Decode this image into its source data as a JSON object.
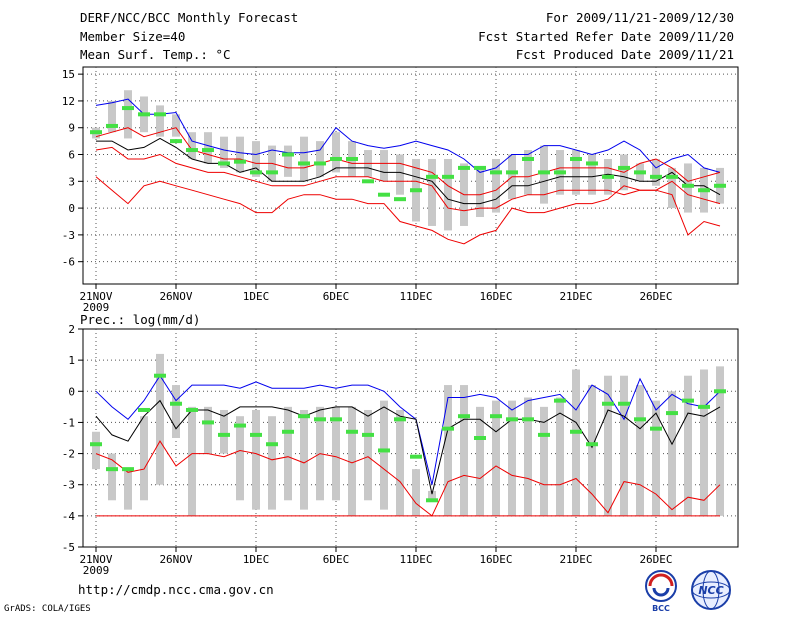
{
  "header": {
    "title": "DERF/NCC/BCC Monthly Forecast",
    "member_size": "Member Size=40",
    "panel1_var": "Mean Surf. Temp.: °C",
    "forecast_period": "For 2009/11/21-2009/12/30",
    "start_date": "Fcst Started Refer Date 2009/11/20",
    "produced_date": "Fcst Produced Date 2009/11/21"
  },
  "footer": {
    "url": "http://cmdp.ncc.cma.gov.cn",
    "credit": "GrADS: COLA/IGES",
    "logos": [
      "BCC",
      "NCC"
    ]
  },
  "colors": {
    "max_line": "#0000ee",
    "min_line": "#ee0000",
    "mean_line": "#000000",
    "red_mid": "#ee0000",
    "bar": "#c8c8c8",
    "obs": "#44e044"
  },
  "chart_data": [
    {
      "type": "line",
      "title": "Mean Surf. Temp.: °C",
      "x_tick_labels": [
        "21NOV",
        "26NOV",
        "1DEC",
        "6DEC",
        "11DEC",
        "16DEC",
        "21DEC",
        "26DEC"
      ],
      "x_year_label": "2009",
      "y_ticks": [
        -6,
        -3,
        0,
        3,
        6,
        9,
        12,
        15
      ],
      "ylim": [
        -8.5,
        15.8
      ],
      "days": 40,
      "series": [
        {
          "name": "max",
          "values": [
            11.5,
            11.8,
            12.2,
            10.5,
            10.5,
            10.7,
            7.5,
            7,
            6.5,
            6.2,
            6,
            6.5,
            6.2,
            6.2,
            6.5,
            9,
            7.5,
            7,
            6.7,
            7,
            7.5,
            7,
            6.5,
            5.5,
            4,
            4.5,
            6,
            6,
            7,
            7,
            6.5,
            6,
            6.5,
            7.5,
            6.5,
            4.5,
            5.5,
            6,
            4.5,
            4
          ]
        },
        {
          "name": "upper_red",
          "values": [
            8,
            8.5,
            9,
            8,
            8.5,
            9,
            6.5,
            6,
            5.5,
            5.5,
            5,
            5,
            4.5,
            4.5,
            5,
            5.5,
            5,
            5,
            5,
            5,
            4.5,
            4,
            2.5,
            1.5,
            1.5,
            2,
            3.5,
            3.5,
            4,
            4.5,
            4.5,
            4.5,
            4.5,
            4,
            5,
            5.5,
            4.5,
            3,
            3.5,
            4
          ]
        },
        {
          "name": "mean",
          "values": [
            7.5,
            7.5,
            6.5,
            6.8,
            7.8,
            6.8,
            5.5,
            5,
            5,
            4,
            4.5,
            3,
            3,
            3,
            3.5,
            4.5,
            4.5,
            4.5,
            4,
            4,
            3.5,
            3,
            1,
            0.5,
            0.5,
            1,
            2.5,
            2.5,
            3,
            3.5,
            3.5,
            3.5,
            3.8,
            3.5,
            3,
            3,
            4,
            2.5,
            2.5,
            1.5
          ]
        },
        {
          "name": "lower_red",
          "values": [
            6.5,
            6.8,
            5.5,
            5.5,
            6,
            5,
            4.5,
            4,
            4,
            3.5,
            3,
            2.5,
            2.5,
            2.5,
            3,
            3.5,
            3.5,
            3.5,
            3,
            3,
            3,
            2.5,
            0,
            -0.3,
            0,
            0,
            1,
            1.5,
            1.5,
            2,
            2,
            2,
            2,
            1.5,
            2,
            2,
            3,
            1.5,
            1,
            0.5
          ]
        },
        {
          "name": "min",
          "values": [
            3.5,
            2,
            0.5,
            2.5,
            3,
            2.5,
            2,
            1.5,
            1,
            0.5,
            -0.5,
            -0.5,
            1,
            1.5,
            1.5,
            1,
            1,
            0.5,
            0.5,
            -1.5,
            -2,
            -2.5,
            -3.5,
            -4,
            -3,
            -2.5,
            0,
            -0.5,
            -0.5,
            0,
            0.5,
            0.5,
            1,
            2.5,
            2,
            2,
            1.5,
            -3,
            -1.5,
            -2
          ]
        }
      ],
      "spread": {
        "lows": [
          7.8,
          8.5,
          7.8,
          8.5,
          8,
          8,
          5.5,
          5,
          4.5,
          4,
          3.5,
          3,
          3.5,
          3,
          3.5,
          4,
          3.5,
          3.5,
          3,
          1.5,
          -1.5,
          -2,
          -2.5,
          -2,
          -1,
          -0.5,
          1,
          1.5,
          0.5,
          1.5,
          1.5,
          1.5,
          1.5,
          2,
          3,
          2.5,
          0,
          -0.5,
          -0.5,
          0.5
        ],
        "highs": [
          9,
          12,
          13.2,
          12.5,
          11.5,
          10.5,
          8.5,
          8.5,
          8,
          8,
          7.5,
          7,
          7,
          8,
          7.5,
          8.5,
          7.5,
          6.5,
          6.5,
          6,
          5.5,
          5.5,
          5.5,
          5,
          4.5,
          5.5,
          6,
          6.5,
          7,
          6.5,
          6.5,
          6,
          5.5,
          6,
          5,
          5.5,
          4.5,
          5,
          4.5,
          4.5
        ]
      },
      "observed": [
        8.5,
        9.2,
        11.2,
        10.5,
        10.5,
        7.5,
        6.5,
        6.5,
        5,
        5.2,
        4,
        4,
        6,
        5,
        5,
        5.5,
        5.5,
        3,
        1.5,
        1,
        2,
        3.5,
        3.5,
        4.5,
        4.5,
        4,
        4,
        5.5,
        4,
        4,
        5.5,
        5,
        3.5,
        4.5,
        4,
        3.5,
        3.5,
        2.5,
        2,
        2.5
      ]
    },
    {
      "type": "line",
      "title": "Prec.: log(mm/d)",
      "x_tick_labels": [
        "21NOV",
        "26NOV",
        "1DEC",
        "6DEC",
        "11DEC",
        "16DEC",
        "21DEC",
        "26DEC"
      ],
      "x_year_label": "2009",
      "y_ticks": [
        -5,
        -4,
        -3,
        -2,
        -1,
        0,
        1,
        2
      ],
      "ylim": [
        -5,
        2
      ],
      "days": 40,
      "series": [
        {
          "name": "max",
          "values": [
            0,
            -0.5,
            -0.9,
            -0.3,
            0.5,
            -0.3,
            0.2,
            0.2,
            0.2,
            0.1,
            0.3,
            0.1,
            0.1,
            0.1,
            0.2,
            0.1,
            0.2,
            0.2,
            0,
            -0.5,
            -0.9,
            -3,
            -0.2,
            -0.2,
            -0.1,
            -0.2,
            -0.6,
            -0.3,
            -0.2,
            -0.1,
            -0.6,
            0.2,
            -0.1,
            -0.9,
            0.4,
            -0.6,
            -0.1,
            -0.4,
            -0.5,
            0
          ]
        },
        {
          "name": "mean",
          "values": [
            -0.8,
            -1.4,
            -1.6,
            -0.8,
            -0.3,
            -1.2,
            -0.6,
            -0.6,
            -0.8,
            -0.5,
            -0.5,
            -0.5,
            -0.6,
            -0.8,
            -0.6,
            -0.5,
            -0.5,
            -0.8,
            -0.5,
            -0.8,
            -0.9,
            -3.3,
            -1.2,
            -0.9,
            -0.9,
            -1.3,
            -0.9,
            -0.9,
            -1,
            -0.7,
            -1,
            -1.8,
            -0.6,
            -0.8,
            -1.2,
            -0.7,
            -1.7,
            -0.7,
            -0.8,
            -0.5
          ]
        },
        {
          "name": "min",
          "values": [
            -2,
            -2.2,
            -2.6,
            -2.5,
            -1.6,
            -2.4,
            -2,
            -2,
            -2.1,
            -1.9,
            -2,
            -2.2,
            -2.1,
            -2.3,
            -2,
            -2.1,
            -2.3,
            -2.1,
            -2.5,
            -2.9,
            -3.6,
            -4,
            -2.9,
            -2.7,
            -2.8,
            -2.4,
            -2.7,
            -2.8,
            -3,
            -3,
            -2.8,
            -3.3,
            -3.9,
            -2.9,
            -3,
            -3.3,
            -3.8,
            -3.4,
            -3.5,
            -3
          ]
        },
        {
          "name": "floor",
          "values": [
            -4,
            -4,
            -4,
            -4,
            -4,
            -4,
            -4,
            -4,
            -4,
            -4,
            -4,
            -4,
            -4,
            -4,
            -4,
            -4,
            -4,
            -4,
            -4,
            -4,
            -4,
            -4,
            -4,
            -4,
            -4,
            -4,
            -4,
            -4,
            -4,
            -4,
            -4,
            -4,
            -4,
            -4,
            -4,
            -4,
            -4,
            -4,
            -4,
            -4
          ]
        }
      ],
      "spread": {
        "lows": [
          -2.5,
          -3.5,
          -3.8,
          -3.5,
          -3,
          -1.5,
          -4,
          -2,
          -2,
          -3.5,
          -3.8,
          -3.8,
          -3.5,
          -3.8,
          -3.5,
          -3.5,
          -4,
          -3.5,
          -3.8,
          -4,
          -4,
          -3.5,
          -4,
          -4,
          -4,
          -4,
          -4,
          -4,
          -4,
          -4,
          -4,
          -4,
          -4,
          -4,
          -4,
          -4,
          -4,
          -4,
          -4,
          -4
        ],
        "highs": [
          -1.3,
          -2,
          -2.5,
          -0.8,
          1.2,
          0.2,
          -0.5,
          -0.5,
          -0.6,
          -0.8,
          -0.6,
          -0.8,
          -0.5,
          -0.6,
          -0.5,
          -0.5,
          -0.5,
          -0.6,
          -0.3,
          -0.6,
          -2.5,
          -3.2,
          0.2,
          0.2,
          -0.5,
          -0.3,
          -0.3,
          -0.2,
          -0.5,
          -0.2,
          0.7,
          0.2,
          0.5,
          0.5,
          0.2,
          -0.3,
          0,
          0.5,
          0.7,
          0.8
        ]
      },
      "observed": [
        -1.7,
        -2.5,
        -2.5,
        -0.6,
        0.5,
        -0.4,
        -0.6,
        -1,
        -1.4,
        -1.1,
        -1.4,
        -1.7,
        -1.3,
        -0.8,
        -0.9,
        -0.9,
        -1.3,
        -1.4,
        -1.9,
        -0.9,
        -2.1,
        -3.5,
        -1.2,
        -0.8,
        -1.5,
        -0.8,
        -0.9,
        -0.9,
        -1.4,
        -0.3,
        -1.3,
        -1.7,
        -0.4,
        -0.4,
        -0.9,
        -1.2,
        -0.7,
        -0.3,
        -0.5,
        0
      ]
    }
  ]
}
